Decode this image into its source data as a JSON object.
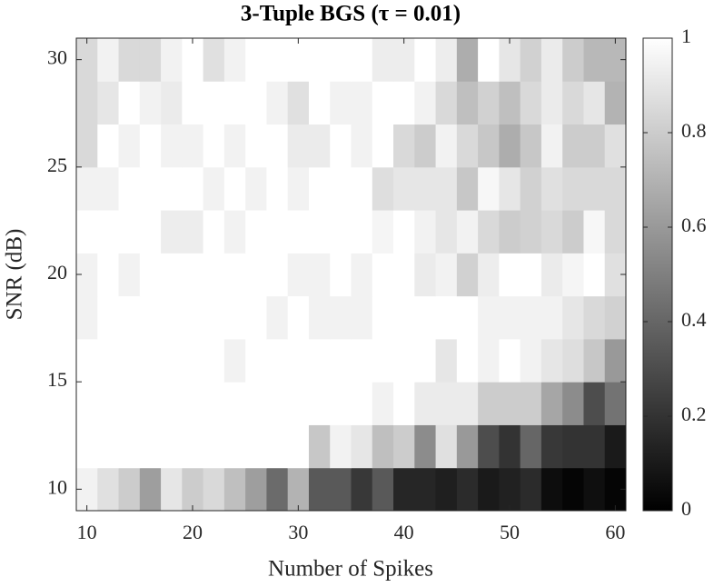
{
  "chart_data": {
    "type": "heatmap",
    "title": "3-Tuple BGS (τ = 0.01)",
    "xlabel": "Number of Spikes",
    "ylabel": "SNR (dB)",
    "x": [
      10,
      12,
      14,
      16,
      18,
      20,
      22,
      24,
      26,
      28,
      30,
      32,
      34,
      36,
      38,
      40,
      42,
      44,
      46,
      48,
      50,
      52,
      54,
      56,
      58,
      60
    ],
    "y": [
      10,
      12,
      14,
      16,
      18,
      20,
      22,
      24,
      26,
      28,
      30
    ],
    "z": [
      [
        0.95,
        0.88,
        0.8,
        0.62,
        0.9,
        0.8,
        0.85,
        0.75,
        0.62,
        0.42,
        0.7,
        0.35,
        0.35,
        0.22,
        0.35,
        0.15,
        0.15,
        0.12,
        0.17,
        0.1,
        0.13,
        0.17,
        0.05,
        0.02,
        0.06,
        0.02
      ],
      [
        1,
        1,
        1,
        1,
        1,
        1,
        1,
        1,
        1,
        1,
        1,
        0.78,
        0.95,
        0.9,
        0.75,
        0.8,
        0.55,
        0.88,
        0.6,
        0.3,
        0.2,
        0.4,
        0.22,
        0.2,
        0.2,
        0.1
      ],
      [
        1,
        1,
        1,
        1,
        1,
        1,
        1,
        1,
        1,
        1,
        1,
        1,
        1,
        1,
        0.95,
        1,
        0.92,
        0.92,
        0.92,
        0.8,
        0.8,
        0.8,
        0.65,
        0.55,
        0.3,
        0.45
      ],
      [
        1,
        1,
        1,
        1,
        1,
        1,
        1,
        0.95,
        1,
        1,
        1,
        1,
        1,
        1,
        1,
        1,
        1,
        0.9,
        1,
        0.95,
        1,
        0.95,
        0.9,
        0.87,
        0.78,
        0.6
      ],
      [
        0.95,
        1,
        1,
        1,
        1,
        1,
        1,
        1,
        1,
        0.95,
        1,
        0.95,
        0.95,
        0.95,
        1,
        1,
        1,
        1,
        1,
        0.95,
        0.95,
        0.95,
        0.95,
        0.9,
        0.85,
        0.82
      ],
      [
        0.95,
        1,
        0.95,
        1,
        1,
        1,
        1,
        1,
        1,
        1,
        0.95,
        0.95,
        1,
        0.95,
        1,
        1,
        0.92,
        0.95,
        0.82,
        0.93,
        1,
        1,
        0.92,
        0.96,
        1,
        0.88
      ],
      [
        1,
        1,
        1,
        1,
        0.93,
        0.93,
        1,
        0.95,
        1,
        1,
        1,
        1,
        1,
        1,
        0.96,
        1,
        0.95,
        0.9,
        0.95,
        0.85,
        0.8,
        0.82,
        0.85,
        0.8,
        0.97,
        0.85
      ],
      [
        0.95,
        0.95,
        1,
        1,
        1,
        1,
        0.95,
        1,
        0.95,
        1,
        0.95,
        1,
        1,
        1,
        0.87,
        0.9,
        0.9,
        0.9,
        0.78,
        0.97,
        0.9,
        0.82,
        0.88,
        0.85,
        0.85,
        0.85
      ],
      [
        0.85,
        1,
        0.95,
        1,
        0.95,
        0.95,
        1,
        0.95,
        1,
        1,
        0.92,
        0.92,
        1,
        0.95,
        1,
        0.85,
        0.8,
        0.95,
        0.85,
        0.78,
        0.68,
        0.78,
        0.95,
        0.8,
        0.8,
        0.88
      ],
      [
        0.85,
        0.9,
        1,
        0.95,
        0.92,
        1,
        1,
        1,
        1,
        0.95,
        0.88,
        1,
        0.95,
        0.95,
        1,
        1,
        0.95,
        0.85,
        0.75,
        0.82,
        0.75,
        0.85,
        0.92,
        0.85,
        0.9,
        0.7
      ],
      [
        0.85,
        0.95,
        0.85,
        0.85,
        0.95,
        1,
        0.88,
        0.95,
        1,
        1,
        1,
        1,
        1,
        1,
        0.93,
        0.93,
        1,
        0.93,
        0.68,
        1,
        0.9,
        0.82,
        0.92,
        0.8,
        0.72,
        0.72
      ]
    ],
    "colormap": "gray",
    "xlim": [
      9,
      61
    ],
    "ylim": [
      9,
      31
    ],
    "xticks": [
      10,
      20,
      30,
      40,
      50,
      60
    ],
    "yticks": [
      10,
      15,
      20,
      25,
      30
    ],
    "clim": [
      0,
      1
    ],
    "cticks": [
      0,
      0.2,
      0.4,
      0.6,
      0.8,
      1
    ]
  }
}
